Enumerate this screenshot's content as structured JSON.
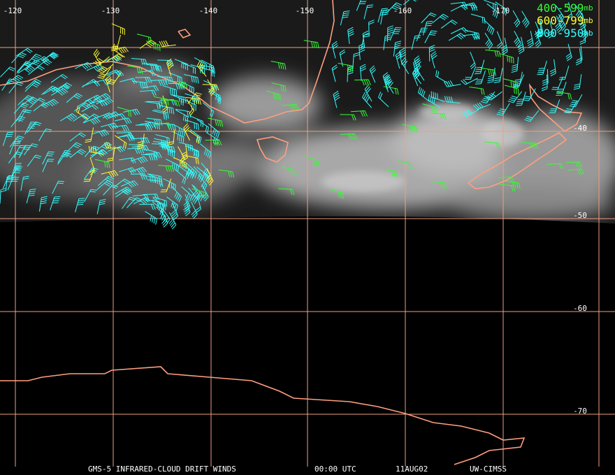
{
  "map": {
    "longitude_labels": [
      "-120",
      "-130",
      "-140",
      "-150",
      "-160",
      "-170"
    ],
    "latitude_labels": [
      "-40",
      "-50",
      "-60",
      "-70"
    ],
    "legend": [
      {
        "label": "400-599",
        "unit": "mb",
        "color": "#33ff33"
      },
      {
        "label": "600-799",
        "unit": "mb",
        "color": "#ffff33"
      },
      {
        "label": "800-950",
        "unit": "mb",
        "color": "#33ffff"
      }
    ],
    "footer": [
      "GMS-5 INFRARED-CLOUD DRIFT WINDS",
      "00:00 UTC",
      "11AUG02",
      "UW-CIMSS"
    ]
  }
}
